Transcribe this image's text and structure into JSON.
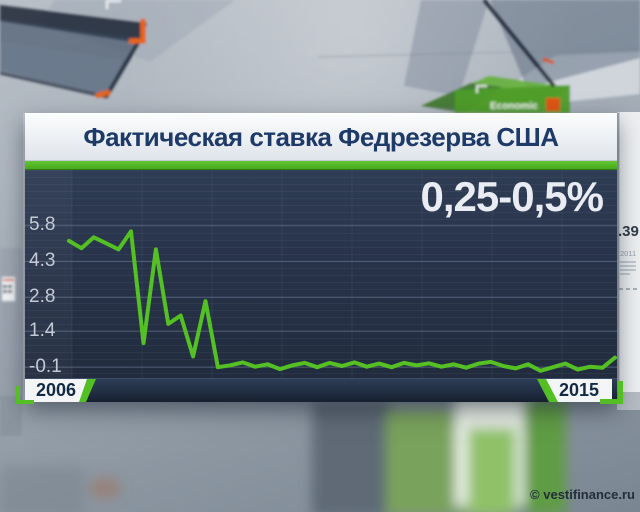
{
  "watermark": "© vestifinance.ru",
  "panel": {
    "title": "Фактическая ставка Федрезерва США",
    "rate_label": "0,25-0,5%",
    "x_start_label": "2006",
    "x_end_label": "2015"
  },
  "background": {
    "side_panel": {
      "number": ".39",
      "year": "2011"
    },
    "green_box_label": "Economic"
  },
  "colors": {
    "accent_green": "#54bf24",
    "line_green": "#54c024",
    "title_navy": "#1d3a68",
    "chart_bg": "#28334a",
    "orange_accent": "#e8641c"
  },
  "chart_data": {
    "type": "line",
    "title": "Фактическая ставка Федрезерва США",
    "annotation": "0,25-0,5%",
    "x_range": [
      2006,
      2015
    ],
    "x_tick_labels": [
      "2006",
      "2015"
    ],
    "y_ticks": [
      5.8,
      4.3,
      2.8,
      1.4,
      -0.1
    ],
    "y_tick_labels": [
      "5.8",
      "4.3",
      "2.8",
      "1.4",
      "-0.1"
    ],
    "ylim": [
      -0.55,
      8.1
    ],
    "grid": "horizontal",
    "legend": "none",
    "line_color": "#54c024",
    "values": [
      5.15,
      4.85,
      5.3,
      5.05,
      4.8,
      5.55,
      0.9,
      4.8,
      1.7,
      2.05,
      0.35,
      2.65,
      -0.1,
      -0.02,
      0.1,
      -0.08,
      0.02,
      -0.18,
      -0.02,
      0.08,
      -0.1,
      0.08,
      -0.05,
      0.1,
      -0.08,
      0.05,
      -0.1,
      0.08,
      -0.02,
      0.06,
      -0.08,
      0.02,
      -0.12,
      0.05,
      0.12,
      -0.05,
      -0.15,
      0.02,
      -0.25,
      -0.1,
      0.05,
      -0.2,
      -0.08,
      -0.12,
      0.3
    ]
  }
}
